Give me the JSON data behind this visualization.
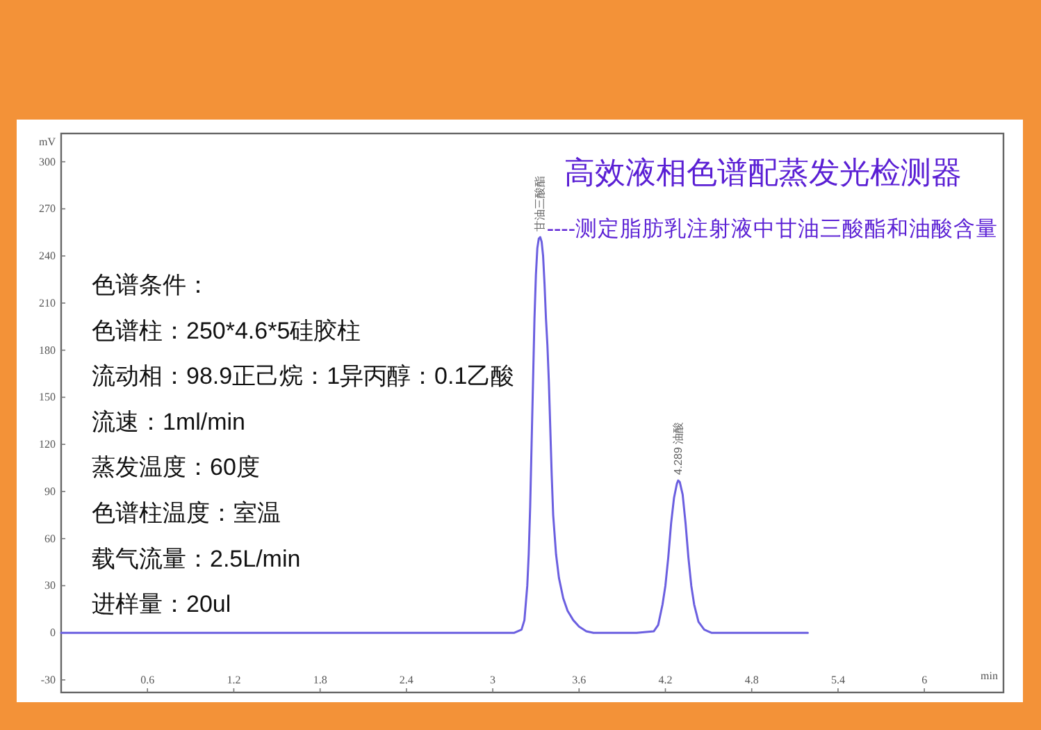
{
  "chart_data": {
    "type": "line",
    "title": "高效液相色谱配蒸发光检测器",
    "subtitle": "----测定脂肪乳注射液中甘油三酸酯和油酸含量",
    "xlabel": "min",
    "ylabel": "mV",
    "xlim": [
      0,
      6.55
    ],
    "ylim": [
      -38,
      318
    ],
    "xticks": [
      0.6,
      1.2,
      1.8,
      2.4,
      3,
      3.6,
      4.2,
      4.8,
      5.4,
      6
    ],
    "yticks": [
      -30,
      0,
      30,
      60,
      90,
      120,
      150,
      180,
      210,
      240,
      270,
      300
    ],
    "grid": false,
    "series": [
      {
        "color": "#6b5fe0",
        "x": [
          0,
          1.0,
          2.0,
          3.0,
          3.15,
          3.2,
          3.22,
          3.24,
          3.25,
          3.26,
          3.27,
          3.28,
          3.29,
          3.3,
          3.31,
          3.32,
          3.33,
          3.34,
          3.35,
          3.36,
          3.37,
          3.38,
          3.39,
          3.4,
          3.41,
          3.42,
          3.44,
          3.46,
          3.49,
          3.52,
          3.56,
          3.6,
          3.65,
          3.7,
          4.0,
          4.12,
          4.15,
          4.18,
          4.2,
          4.22,
          4.24,
          4.26,
          4.28,
          4.289,
          4.3,
          4.32,
          4.34,
          4.36,
          4.38,
          4.4,
          4.43,
          4.47,
          4.52,
          5.19
        ],
        "values": [
          0,
          0,
          0,
          0,
          0,
          2,
          8,
          30,
          50,
          80,
          120,
          160,
          200,
          228,
          245,
          251,
          252,
          249,
          240,
          222,
          200,
          183,
          160,
          130,
          100,
          75,
          50,
          35,
          22,
          14,
          8,
          4,
          1,
          0,
          0,
          1,
          5,
          18,
          30,
          48,
          70,
          86,
          95,
          97,
          96,
          88,
          70,
          48,
          30,
          18,
          7,
          2,
          0,
          0
        ]
      }
    ],
    "annotations": [
      "色谱条件：",
      "色谱柱：250*4.6*5硅胶柱",
      "流动相：98.9正己烷：1异丙醇：0.1乙酸",
      "流速：1ml/min",
      "蒸发温度：60度",
      "色谱柱温度：室温",
      "载气流量：2.5L/min",
      "进样量：20ul",
      {
        "text": "甘油三酸酯",
        "x": 3.33,
        "y": 252
      },
      {
        "text": "4.289 油酸",
        "x": 4.289,
        "y": 97
      }
    ]
  }
}
